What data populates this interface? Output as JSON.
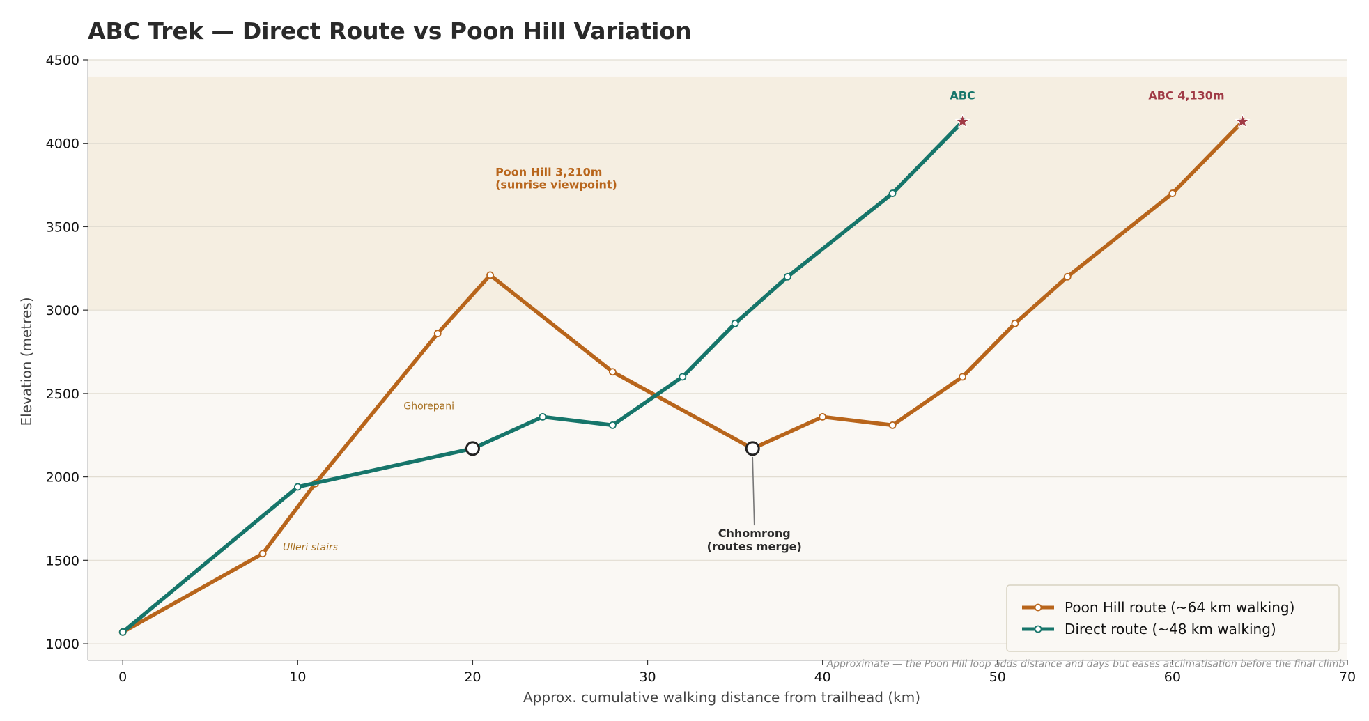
{
  "chart_data": {
    "type": "line",
    "title": "ABC Trek — Direct Route vs Poon Hill Variation",
    "xlabel": "Approx. cumulative walking distance from trailhead (km)",
    "ylabel": "Elevation (metres)",
    "xlim": [
      -2,
      70
    ],
    "ylim": [
      900,
      4500
    ],
    "xticks": [
      0,
      10,
      20,
      30,
      40,
      50,
      60,
      70
    ],
    "yticks": [
      1000,
      1500,
      2000,
      2500,
      3000,
      3500,
      4000,
      4500
    ],
    "grid": "horizontal",
    "legend_position": "lower-right",
    "shaded_band": {
      "y_from": 3000,
      "y_to": 4400,
      "color": "#f5eee1"
    },
    "series": [
      {
        "name": "Poon Hill route  (~64 km walking)",
        "color": "#b8651b",
        "x": [
          0,
          8,
          11,
          18,
          21,
          28,
          36,
          40,
          44,
          48,
          51,
          54,
          60,
          64
        ],
        "y": [
          1070,
          1540,
          1960,
          2860,
          3210,
          2630,
          2170,
          2360,
          2310,
          2600,
          2920,
          3200,
          3700,
          4130
        ]
      },
      {
        "name": "Direct route  (~48 km walking)",
        "color": "#16756a",
        "x": [
          0,
          10,
          20,
          24,
          28,
          32,
          35,
          38,
          44,
          48
        ],
        "y": [
          1070,
          1940,
          2170,
          2360,
          2310,
          2600,
          2920,
          3200,
          3700,
          4130
        ]
      }
    ],
    "markers": [
      {
        "type": "star",
        "x": 48,
        "y": 4130,
        "color": "#a03a45"
      },
      {
        "type": "star",
        "x": 64,
        "y": 4130,
        "color": "#a03a45"
      },
      {
        "type": "ring",
        "x": 20,
        "y": 2170
      },
      {
        "type": "ring",
        "x": 36,
        "y": 2170
      }
    ],
    "annotations": [
      {
        "id": "abc-direct",
        "text": "ABC",
        "color": "#16756a",
        "weight": "bold",
        "italic": false,
        "size": 16,
        "anchor": "middle",
        "x": 48,
        "y": 4265
      },
      {
        "id": "abc-poon",
        "text": "ABC 4,130m",
        "color": "#a03a45",
        "weight": "bold",
        "italic": false,
        "size": 16,
        "anchor": "middle",
        "x": 60.8,
        "y": 4265
      },
      {
        "id": "poon-hill-1",
        "text": "Poon Hill 3,210m",
        "color": "#b8651b",
        "weight": "bold",
        "italic": false,
        "size": 16,
        "anchor": "start",
        "x": 21.3,
        "y": 3805
      },
      {
        "id": "poon-hill-2",
        "text": "(sunrise viewpoint)",
        "color": "#b8651b",
        "weight": "bold",
        "italic": false,
        "size": 16,
        "anchor": "start",
        "x": 21.3,
        "y": 3730
      },
      {
        "id": "ghorepani",
        "text": "Ghorepani",
        "color": "#a66f1f",
        "weight": "normal",
        "italic": false,
        "size": 14,
        "anchor": "middle",
        "x": 17.5,
        "y": 2405
      },
      {
        "id": "ulleri",
        "text": "Ulleri stairs",
        "color": "#a66f1f",
        "weight": "normal",
        "italic": true,
        "size": 14,
        "anchor": "start",
        "x": 9.15,
        "y": 1560
      },
      {
        "id": "chhomrong-1",
        "text": "Chhomrong",
        "color": "#2a2a2a",
        "weight": "bold",
        "italic": false,
        "size": 16,
        "anchor": "middle",
        "x": 36.1,
        "y": 1640
      },
      {
        "id": "chhomrong-2",
        "text": "(routes merge)",
        "color": "#2a2a2a",
        "weight": "bold",
        "italic": false,
        "size": 16,
        "anchor": "middle",
        "x": 36.1,
        "y": 1560
      },
      {
        "id": "footnote",
        "text": "Approximate — the Poon Hill loop adds distance and days but eases acclimatisation before the final climb",
        "color": "#8f8f8f",
        "weight": "normal",
        "italic": true,
        "size": 14,
        "anchor": "end",
        "x": 69.85,
        "y": 860
      }
    ],
    "arrow": {
      "from": [
        36.1,
        1710
      ],
      "to": [
        36,
        2170
      ]
    }
  }
}
